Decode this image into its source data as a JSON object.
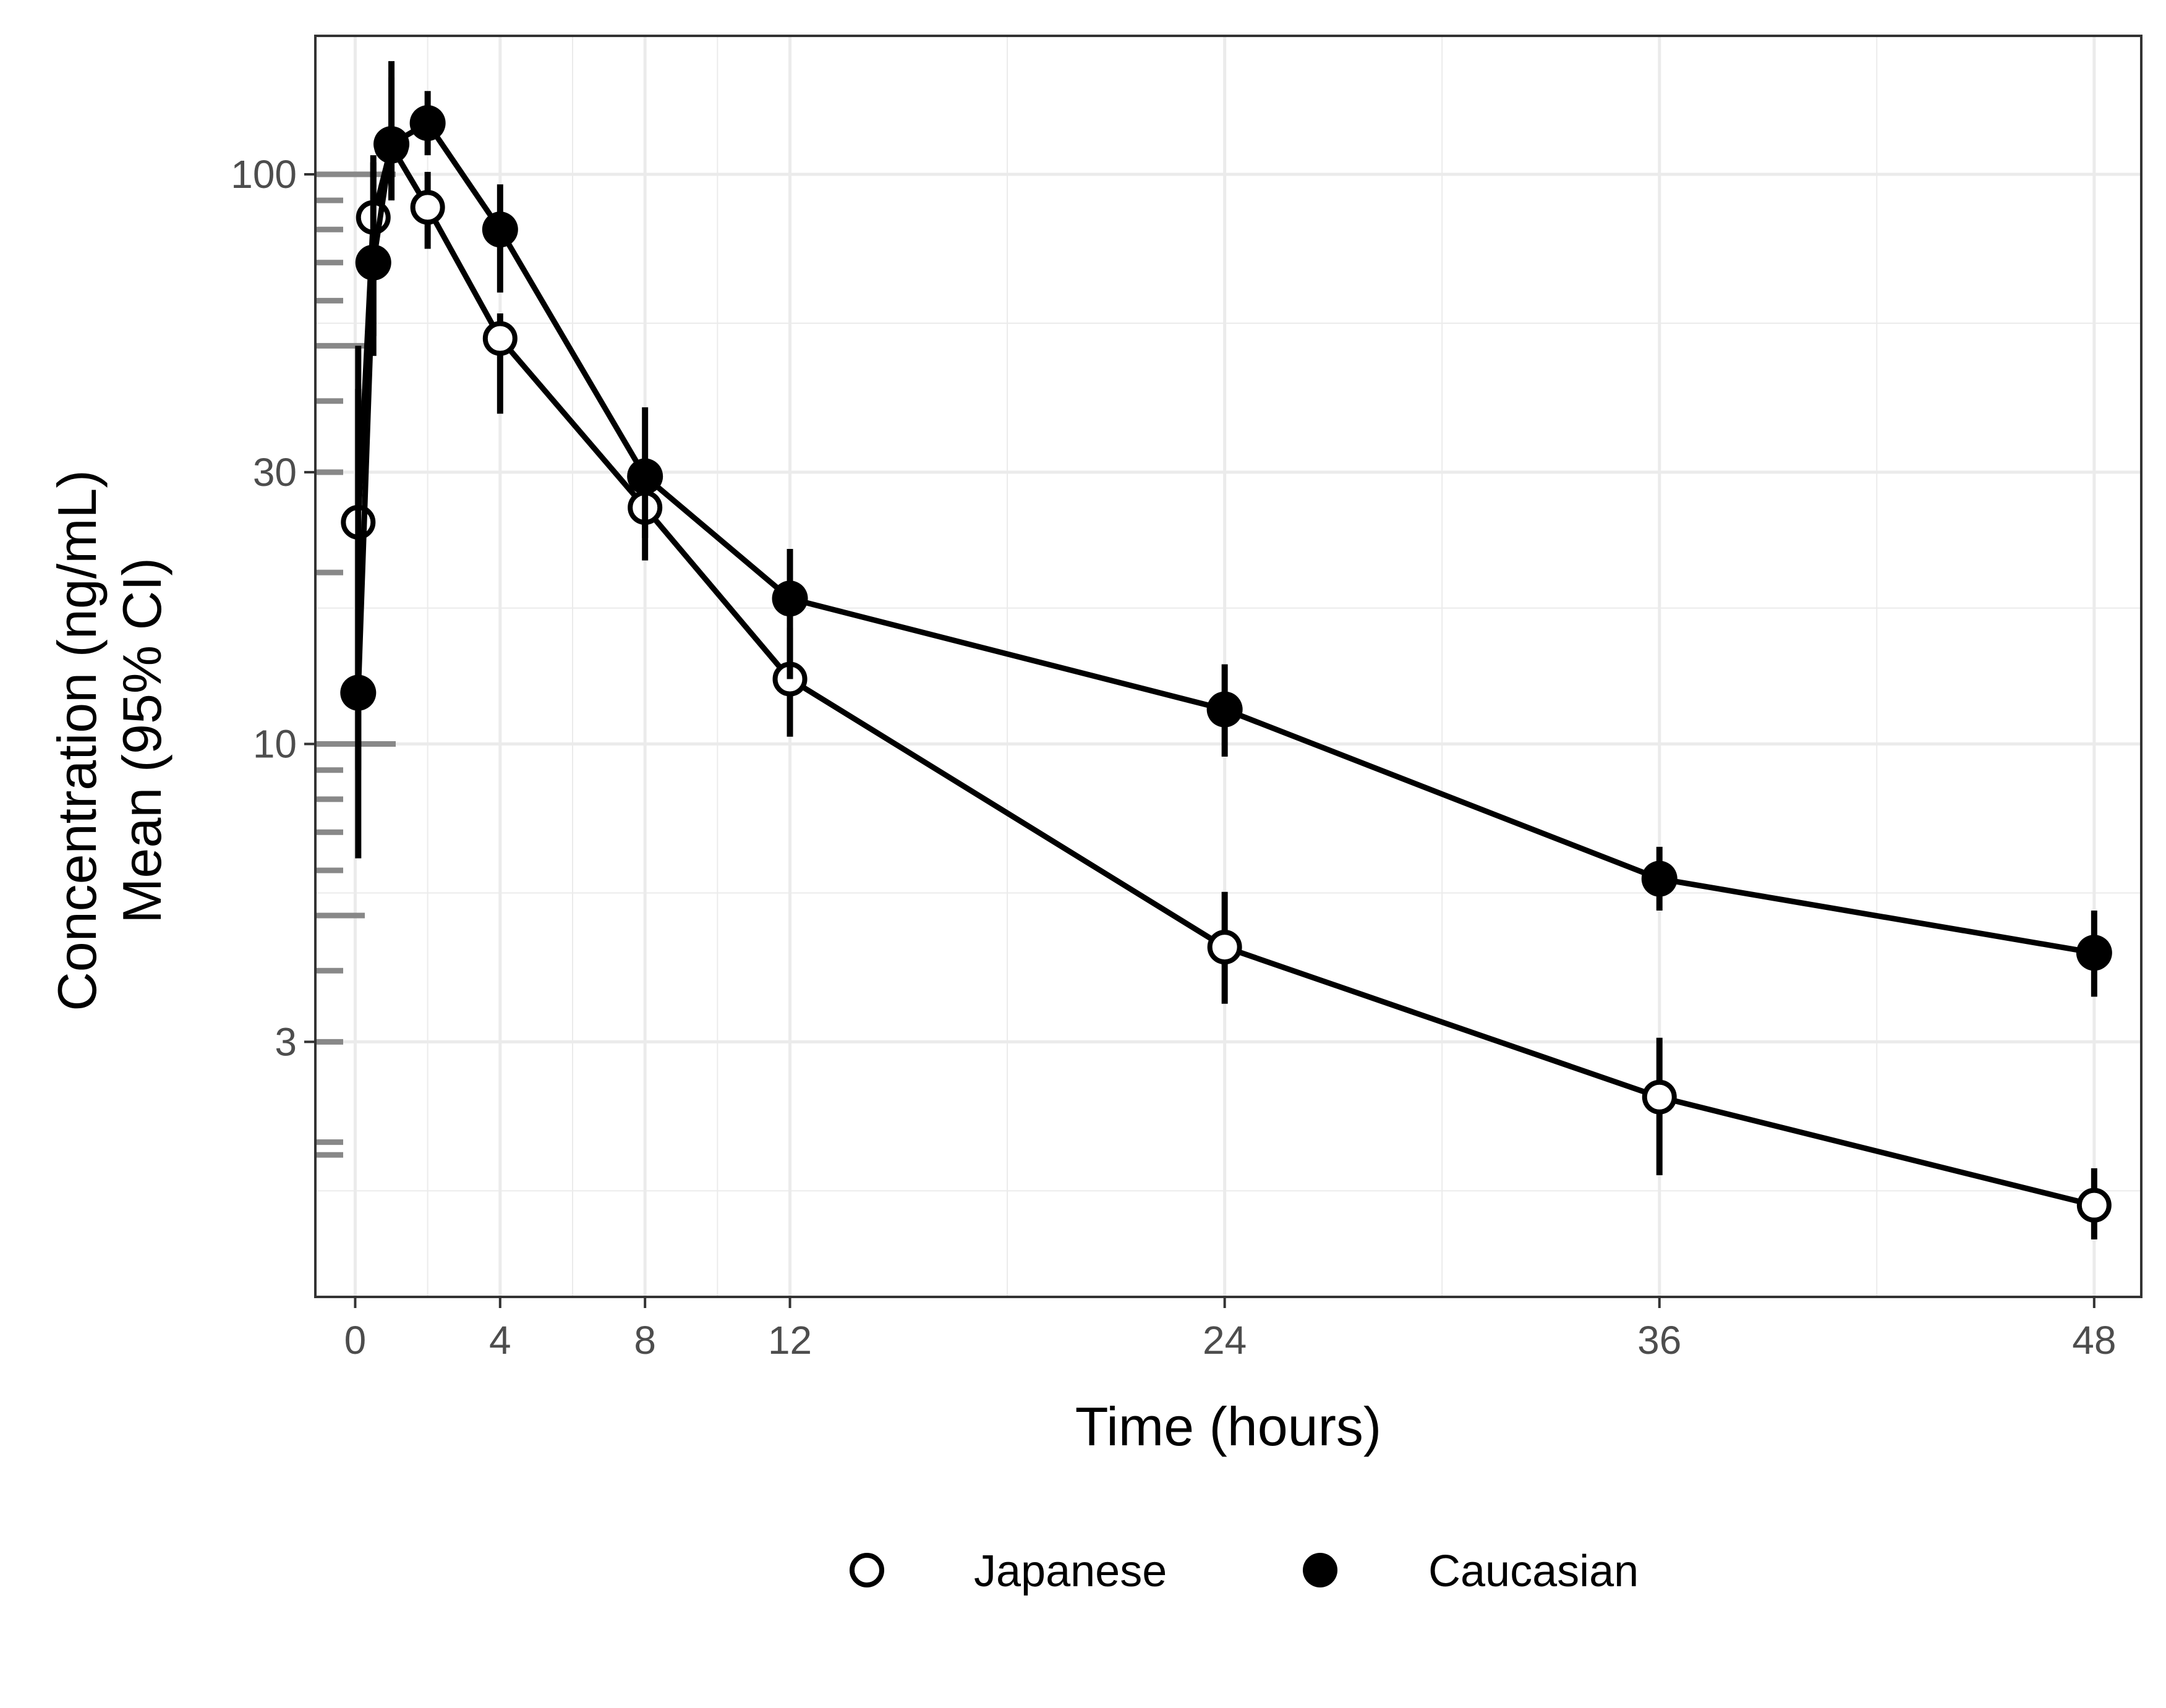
{
  "chart_data": {
    "type": "line",
    "title": "",
    "xlabel": "Time (hours)",
    "ylabel": [
      "Concentration (ng/mL)",
      "Mean (95% CI)"
    ],
    "x_scale": "linear",
    "y_scale": "log",
    "xlim": [
      -1.1,
      49.3
    ],
    "ylim": [
      1.07,
      175
    ],
    "x_ticks": [
      0,
      4,
      8,
      12,
      24,
      36,
      48
    ],
    "x_tick_labels": [
      "0",
      "4",
      "8",
      "12",
      "24",
      "36",
      "48"
    ],
    "y_ticks": [
      3,
      10,
      30,
      100
    ],
    "y_tick_labels": [
      "3",
      "10",
      "30",
      "100"
    ],
    "grid": true,
    "legend_position": "bottom",
    "series": [
      {
        "name": "Japanese",
        "marker": "open-circle",
        "color": "#000000",
        "x": [
          0.083,
          0.5,
          1,
          2,
          4,
          8,
          12,
          24,
          36,
          48
        ],
        "y": [
          24.5,
          84,
          112,
          87.5,
          51.5,
          26,
          13,
          4.4,
          2.4,
          1.55
        ],
        "ci_lower": [
          9,
          52,
          90,
          74,
          38,
          21,
          10.3,
          3.5,
          1.75,
          1.35
        ],
        "ci_upper": [
          50,
          105,
          148,
          101,
          57,
          30,
          16,
          5.5,
          3.05,
          1.8
        ]
      },
      {
        "name": "Caucasian",
        "marker": "filled-circle",
        "color": "#000000",
        "x": [
          0.083,
          0.5,
          1,
          2,
          4,
          8,
          12,
          24,
          36,
          48
        ],
        "y": [
          12.3,
          70,
          113,
          123,
          80,
          29.5,
          18,
          11.5,
          5.8,
          4.3
        ],
        "ci_lower": [
          6.3,
          48,
          90,
          108,
          62,
          23,
          13,
          9.5,
          5.1,
          3.6
        ],
        "ci_upper": [
          42,
          108,
          158,
          140,
          96,
          39,
          22,
          13.8,
          6.6,
          5.1
        ]
      }
    ],
    "rug_y": [
      1.9,
      2,
      3,
      4,
      5,
      6,
      7,
      8,
      9,
      10,
      20,
      30,
      40,
      50,
      60,
      70,
      80,
      90,
      100
    ]
  }
}
